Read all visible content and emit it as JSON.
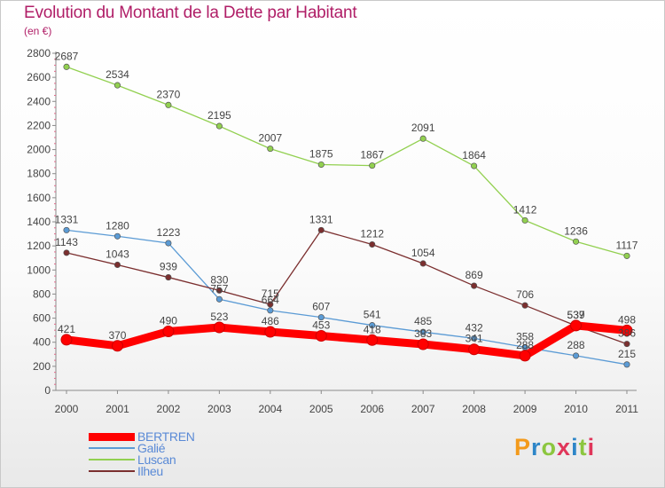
{
  "header": {
    "title": "Evolution du Montant de la Dette par Habitant",
    "subtitle": "(en €)"
  },
  "logo": {
    "text": "Proxiti",
    "letter_colors": [
      "#f39a1b",
      "#2e86c8",
      "#8cc63f",
      "#e0365a",
      "#2e86c8",
      "#8cc63f",
      "#e0365a"
    ]
  },
  "chart_data": {
    "type": "line",
    "title": "Evolution du Montant de la Dette par Habitant",
    "subtitle": "(en €)",
    "xlabel": "",
    "ylabel": "",
    "x": [
      "2000",
      "2001",
      "2002",
      "2003",
      "2004",
      "2005",
      "2006",
      "2007",
      "2008",
      "2009",
      "2010",
      "2011"
    ],
    "ylim": [
      0,
      2800
    ],
    "yticks": [
      0,
      200,
      400,
      600,
      800,
      1000,
      1200,
      1400,
      1600,
      1800,
      2000,
      2200,
      2400,
      2600,
      2800
    ],
    "grid": false,
    "legend_position": "bottom-left",
    "series": [
      {
        "name": "BERTREN",
        "color": "#ff0000",
        "values": [
          421,
          370,
          490,
          523,
          486,
          453,
          418,
          383,
          341,
          288,
          539,
          498
        ]
      },
      {
        "name": "Galié",
        "color": "#5b9bd5",
        "values": [
          1331,
          1280,
          1223,
          757,
          664,
          607,
          541,
          485,
          432,
          358,
          288,
          215
        ]
      },
      {
        "name": "Luscan",
        "color": "#92d050",
        "values": [
          2687,
          2534,
          2370,
          2195,
          2007,
          1875,
          1867,
          2091,
          1864,
          1412,
          1236,
          1117
        ]
      },
      {
        "name": "Ilheu",
        "color": "#7b2f2f",
        "values": [
          1143,
          1043,
          939,
          830,
          715,
          1331,
          1212,
          1054,
          869,
          706,
          537,
          386
        ]
      }
    ]
  }
}
